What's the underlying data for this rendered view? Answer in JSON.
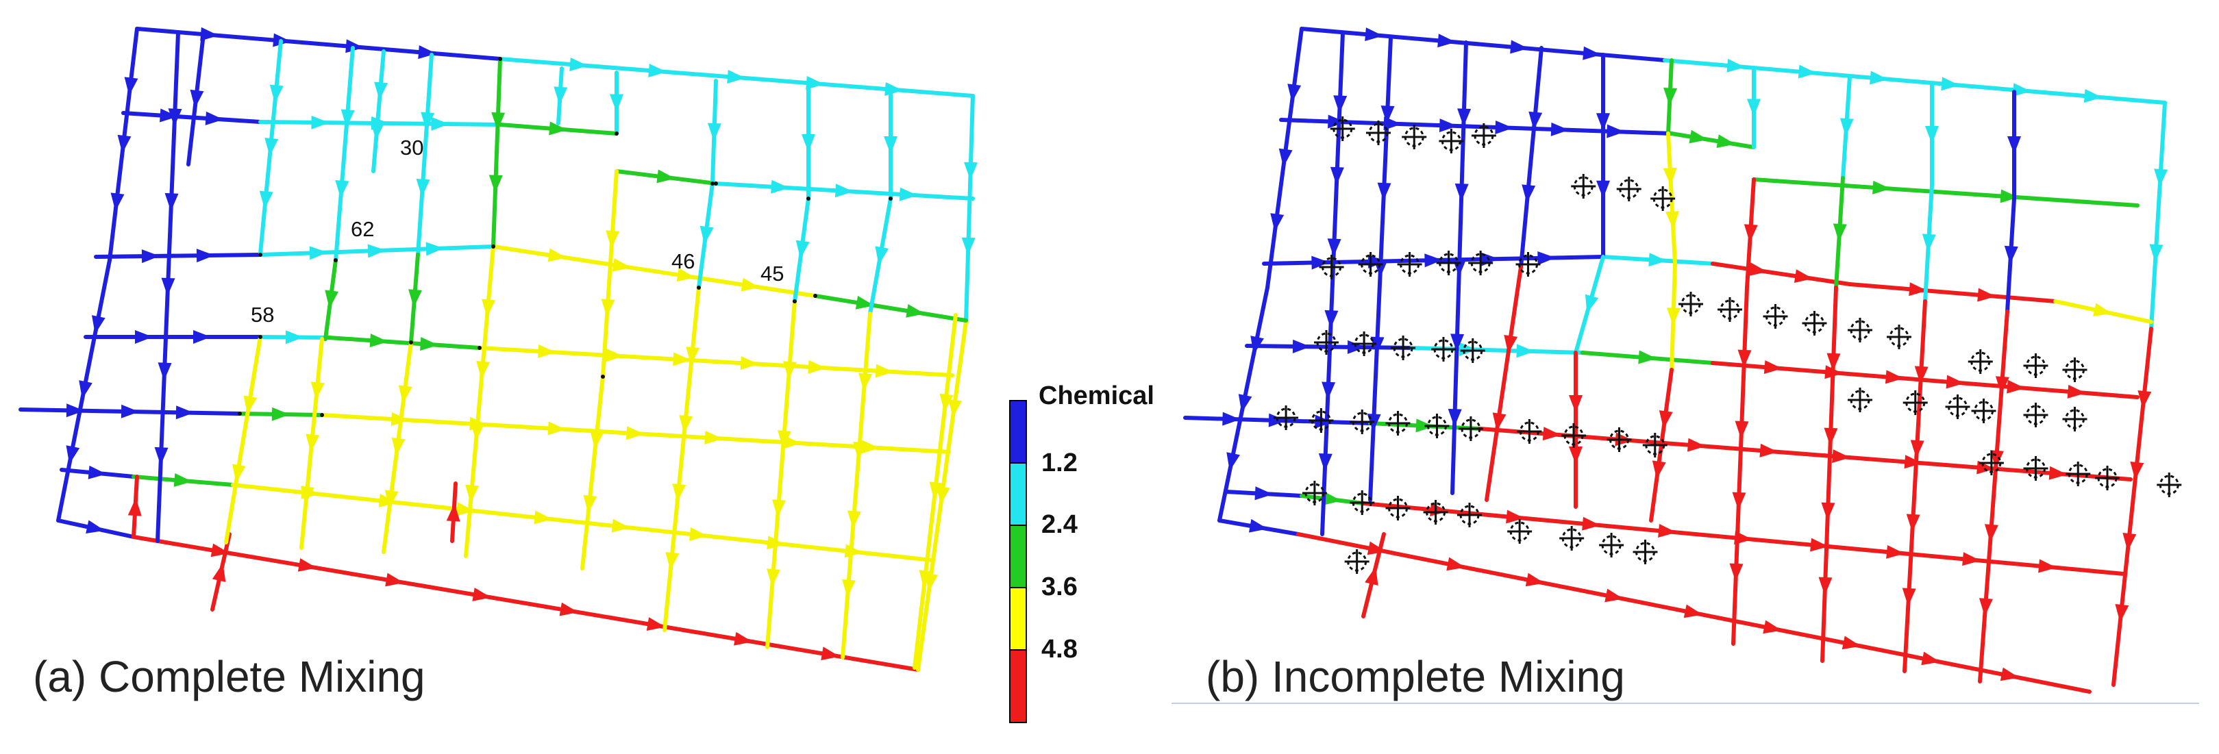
{
  "captions": {
    "a": "(a) Complete Mixing",
    "b": "(b) Incomplete Mixing"
  },
  "node_labels": [
    "30",
    "62",
    "58",
    "46",
    "45"
  ],
  "legend": {
    "title": "Chemical",
    "ticks": [
      "1.2",
      "2.4",
      "3.6",
      "4.8"
    ],
    "colors": [
      "#1f1fe0",
      "#22e5ee",
      "#22cc22",
      "#ffff00",
      "#ee1c1c"
    ]
  },
  "colors": {
    "blue": "#1f1fe0",
    "cyan": "#22e5ee",
    "green": "#22cc22",
    "yellow": "#f4f400",
    "red": "#ee1c1c",
    "marker": "#111111"
  }
}
